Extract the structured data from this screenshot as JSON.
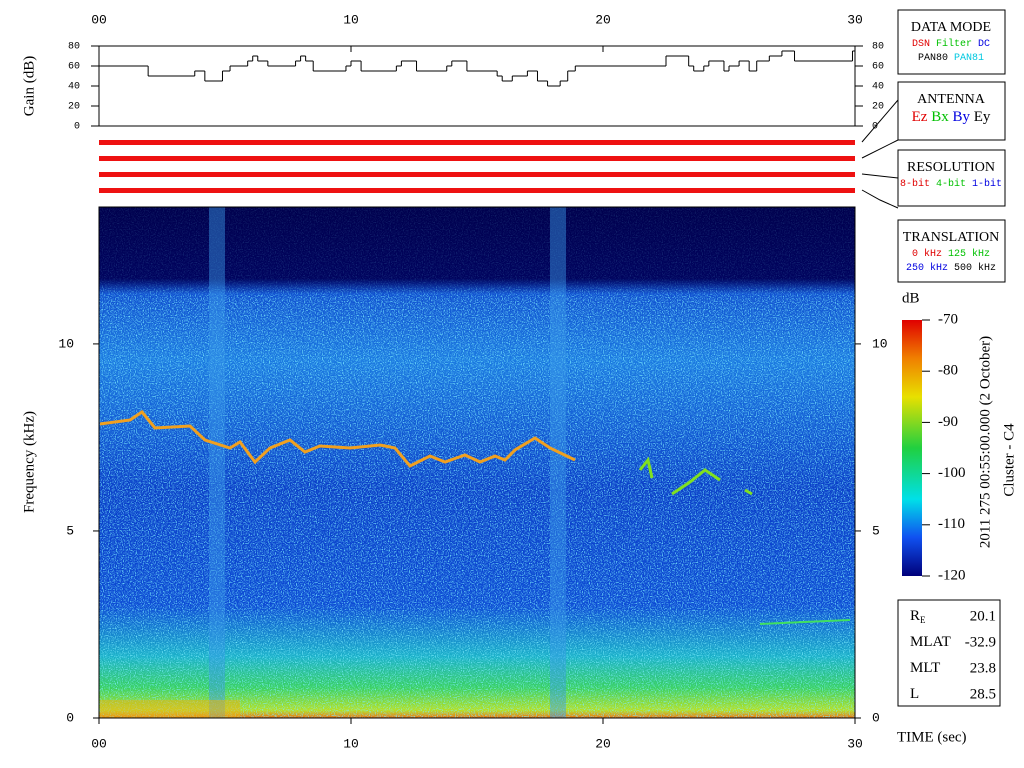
{
  "chart_data": [
    {
      "type": "step-line",
      "y_label": "Gain (dB)",
      "color": "#000000",
      "x": [
        0,
        1.95,
        3.8,
        4.2,
        4.9,
        5.2,
        5.9,
        6.1,
        6.3,
        6.7,
        7.8,
        8.0,
        8.2,
        8.5,
        9.8,
        10.0,
        10.4,
        11.8,
        12.0,
        12.6,
        13.8,
        14.0,
        14.6,
        15.8,
        16.0,
        16.4,
        17.0,
        17.4,
        17.8,
        18.3,
        18.6,
        18.9,
        22.5,
        23.4,
        23.6,
        24.0,
        24.2,
        24.8,
        25.0,
        25.4,
        25.8,
        26.1,
        26.6,
        27.1,
        27.6,
        29.9
      ],
      "values": [
        60,
        50,
        55,
        45,
        55,
        60,
        65,
        70,
        65,
        60,
        65,
        70,
        65,
        55,
        60,
        65,
        55,
        60,
        65,
        55,
        60,
        65,
        55,
        50,
        45,
        50,
        55,
        45,
        40,
        45,
        55,
        60,
        70,
        60,
        55,
        60,
        65,
        55,
        60,
        65,
        55,
        65,
        70,
        75,
        65,
        75
      ],
      "xlim": [
        0,
        30
      ],
      "xticks": [
        {
          "value": 0,
          "label": "00"
        },
        10,
        20,
        30
      ],
      "ylim": [
        0,
        80
      ],
      "yticks": [
        0,
        20,
        40,
        60,
        80
      ]
    },
    {
      "type": "spectrogram",
      "y_label": "Frequency (kHz)",
      "x_label": "TIME (sec)",
      "xlim": [
        0,
        30
      ],
      "xticks": [
        {
          "value": 0,
          "label": "00"
        },
        10,
        20,
        30
      ],
      "ylim": [
        0,
        13.66
      ],
      "yticks": [
        0,
        5,
        10
      ],
      "colorbar": {
        "label": "dB",
        "lim": [
          -120,
          -70
        ],
        "ticks": [
          -70,
          -80,
          -90,
          -100,
          -110,
          -120
        ]
      },
      "date_label": "2011 275 00:55:00.000 (2 October)",
      "spacecraft": "Cluster - C4"
    }
  ],
  "panels": [
    {
      "title": "DATA MODE",
      "rows": [
        [
          {
            "text": "DSN",
            "color": "#e00000"
          },
          {
            "text": "Filter",
            "color": "#00c000"
          },
          {
            "text": "DC",
            "color": "#0000e0"
          }
        ],
        [
          {
            "text": "PAN80",
            "color": "#000000"
          },
          {
            "text": "PAN81",
            "color": "#00c8e0"
          }
        ]
      ]
    },
    {
      "title": "ANTENNA",
      "rows": [
        [
          {
            "text": "Ez",
            "color": "#e00000"
          },
          {
            "text": "Bx",
            "color": "#00c000"
          },
          {
            "text": "By",
            "color": "#0000e0"
          },
          {
            "text": "Ey",
            "color": "#000000"
          }
        ]
      ]
    },
    {
      "title": "RESOLUTION",
      "rows": [
        [
          {
            "text": "8-bit",
            "color": "#e00000"
          },
          {
            "text": "4-bit",
            "color": "#00c000"
          },
          {
            "text": "1-bit",
            "color": "#0000e0"
          }
        ]
      ]
    },
    {
      "title": "TRANSLATION",
      "rows": [
        [
          {
            "text": "0 kHz",
            "color": "#e00000"
          },
          {
            "text": "125 kHz",
            "color": "#00c000"
          }
        ],
        [
          {
            "text": "250 kHz",
            "color": "#0000e0"
          },
          {
            "text": "500 kHz",
            "color": "#000000"
          }
        ]
      ]
    }
  ],
  "ephemeris": [
    {
      "label": "R",
      "sub": "E",
      "value": 20.1
    },
    {
      "label": "MLAT",
      "value": -32.9
    },
    {
      "label": "MLT",
      "value": 23.8
    },
    {
      "label": "L",
      "value": 28.5
    }
  ]
}
